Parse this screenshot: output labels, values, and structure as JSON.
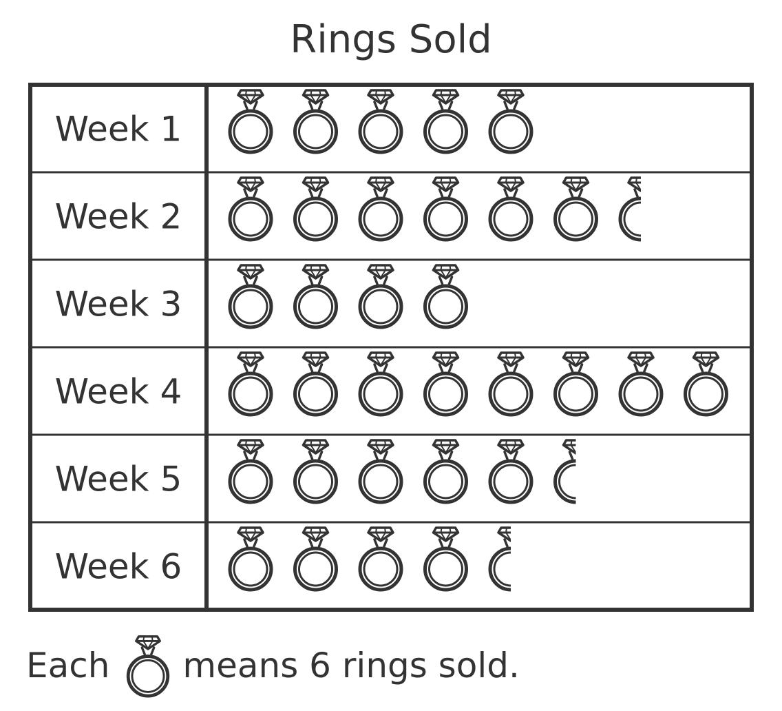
{
  "chart_data": {
    "type": "pictograph",
    "title": "Rings Sold",
    "categories": [
      "Week 1",
      "Week 2",
      "Week 3",
      "Week 4",
      "Week 5",
      "Week 6"
    ],
    "icons": [
      5,
      6.5,
      4,
      8,
      5.5,
      4.5
    ],
    "values": [
      30,
      39,
      24,
      48,
      33,
      27
    ],
    "icon_name": "diamond-ring-icon",
    "key": {
      "prefix": "Each",
      "suffix": "means 6 rings sold.",
      "units_per_icon": 6
    }
  },
  "colors": {
    "ink": "#333333",
    "background": "#ffffff"
  }
}
